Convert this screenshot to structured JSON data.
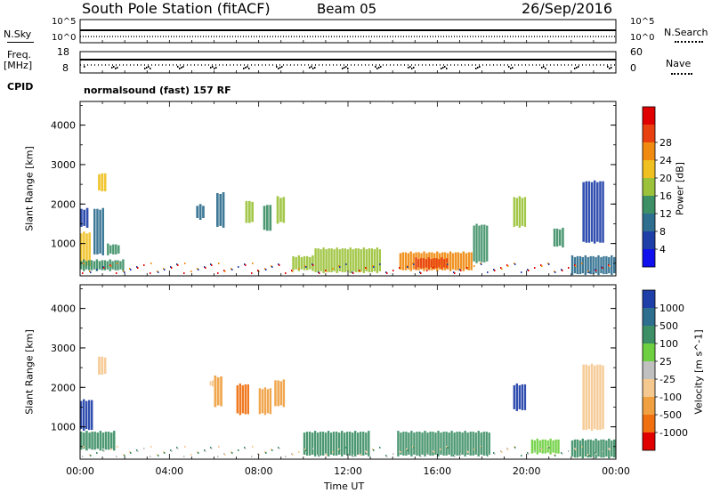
{
  "header": {
    "station": "South Pole Station (fitACF)",
    "beam": "Beam 05",
    "date": "26/Sep/2016"
  },
  "left_labels": {
    "nsky": "N.Sky",
    "freq_line1": "Freq.",
    "freq_line2": "[MHz]",
    "cpid": "CPID"
  },
  "right_labels": {
    "nsearch": "N.Search",
    "nave": "Nave"
  },
  "strip_ticks": {
    "noise_top": "10^5",
    "noise_bottom": "10^0",
    "nsearch_top": "10^5",
    "nsearch_bottom": "10^0",
    "freq_top": "18",
    "freq_bottom": "8",
    "nave_top": "60",
    "nave_bottom": "0"
  },
  "cpid_text": "normalsound (fast) 157 RF",
  "axes": {
    "ylabel": "Slant Range [km]",
    "xlabel": "Time UT",
    "yticks": [
      "1000",
      "2000",
      "3000",
      "4000"
    ],
    "xticks": [
      "00:00",
      "04:00",
      "08:00",
      "12:00",
      "16:00",
      "20:00",
      "00:00"
    ]
  },
  "power_scale": {
    "label": "Power [dB]",
    "ticks": [
      "4",
      "8",
      "12",
      "16",
      "20",
      "24",
      "28"
    ],
    "colors": [
      "#1010ee",
      "#1e3fa8",
      "#2e6e8e",
      "#3d8f66",
      "#9bc23a",
      "#f0c020",
      "#f08a10",
      "#e84010",
      "#e00000"
    ]
  },
  "velocity_scale": {
    "label": "Velocity [m s^-1]",
    "ticks": [
      "1000",
      "500",
      "100",
      "25",
      "-25",
      "-100",
      "-500",
      "-1000"
    ],
    "colors": [
      "#1e3fa8",
      "#2e6e8e",
      "#3d8f66",
      "#6ed040",
      "#c0c0c0",
      "#f5c890",
      "#f0a040",
      "#f07010",
      "#e00000"
    ]
  },
  "chart_data": [
    {
      "type": "heatmap",
      "title": "Power",
      "xlabel": "Time UT",
      "ylabel": "Slant Range [km]",
      "xlim": [
        "00:00",
        "24:00"
      ],
      "ylim": [
        180,
        4600
      ],
      "colorbar": {
        "label": "Power [dB]",
        "range": [
          0,
          32
        ]
      },
      "regions": [
        {
          "t0": 0.0,
          "t1": 0.5,
          "r0": 400,
          "r1": 1300,
          "value": 20
        },
        {
          "t0": 0.0,
          "t1": 0.4,
          "r0": 1400,
          "r1": 1900,
          "value": 6
        },
        {
          "t0": 0.6,
          "t1": 1.1,
          "r0": 700,
          "r1": 1900,
          "value": 8
        },
        {
          "t0": 0.8,
          "t1": 1.2,
          "r0": 2300,
          "r1": 2800,
          "value": 22
        },
        {
          "t0": 1.2,
          "t1": 1.8,
          "r0": 700,
          "r1": 1000,
          "value": 12
        },
        {
          "t0": 5.2,
          "t1": 5.6,
          "r0": 1600,
          "r1": 2000,
          "value": 8
        },
        {
          "t0": 6.1,
          "t1": 6.5,
          "r0": 1400,
          "r1": 2300,
          "value": 8
        },
        {
          "t0": 7.4,
          "t1": 7.8,
          "r0": 1500,
          "r1": 2100,
          "value": 18
        },
        {
          "t0": 8.2,
          "t1": 8.6,
          "r0": 1300,
          "r1": 2000,
          "value": 14
        },
        {
          "t0": 8.8,
          "t1": 9.2,
          "r0": 1500,
          "r1": 2200,
          "value": 18
        },
        {
          "t0": 0.0,
          "t1": 2.0,
          "r0": 300,
          "r1": 600,
          "value": 12
        },
        {
          "t0": 9.5,
          "t1": 10.5,
          "r0": 300,
          "r1": 700,
          "value": 16
        },
        {
          "t0": 10.5,
          "t1": 13.5,
          "r0": 250,
          "r1": 900,
          "value": 16
        },
        {
          "t0": 14.3,
          "t1": 17.6,
          "r0": 300,
          "r1": 800,
          "value": 24
        },
        {
          "t0": 15.0,
          "t1": 16.5,
          "r0": 350,
          "r1": 650,
          "value": 28
        },
        {
          "t0": 17.6,
          "t1": 18.3,
          "r0": 500,
          "r1": 1500,
          "value": 12
        },
        {
          "t0": 19.4,
          "t1": 20.0,
          "r0": 1400,
          "r1": 2200,
          "value": 16
        },
        {
          "t0": 21.2,
          "t1": 21.7,
          "r0": 900,
          "r1": 1400,
          "value": 12
        },
        {
          "t0": 22.5,
          "t1": 23.5,
          "r0": 1000,
          "r1": 2600,
          "value": 6
        },
        {
          "t0": 22.0,
          "t1": 24.0,
          "r0": 200,
          "r1": 700,
          "value": 10
        }
      ]
    },
    {
      "type": "heatmap",
      "title": "Velocity",
      "xlabel": "Time UT",
      "ylabel": "Slant Range [km]",
      "xlim": [
        "00:00",
        "24:00"
      ],
      "ylim": [
        180,
        4600
      ],
      "colorbar": {
        "label": "Velocity [m s^-1]",
        "range": [
          -1000,
          1000
        ]
      },
      "regions": [
        {
          "t0": 0.0,
          "t1": 0.6,
          "r0": 900,
          "r1": 1700,
          "value": 1000
        },
        {
          "t0": 0.0,
          "t1": 1.6,
          "r0": 400,
          "r1": 900,
          "value": 100
        },
        {
          "t0": 0.8,
          "t1": 1.2,
          "r0": 2300,
          "r1": 2800,
          "value": -100
        },
        {
          "t0": 5.8,
          "t1": 6.0,
          "r0": 2000,
          "r1": 2200,
          "value": -100
        },
        {
          "t0": 6.0,
          "t1": 6.4,
          "r0": 1500,
          "r1": 2300,
          "value": -500
        },
        {
          "t0": 7.0,
          "t1": 7.6,
          "r0": 1300,
          "r1": 2100,
          "value": -1000
        },
        {
          "t0": 8.0,
          "t1": 8.6,
          "r0": 1300,
          "r1": 2000,
          "value": -500
        },
        {
          "t0": 8.7,
          "t1": 9.2,
          "r0": 1500,
          "r1": 2200,
          "value": -500
        },
        {
          "t0": 10.0,
          "t1": 13.0,
          "r0": 250,
          "r1": 900,
          "value": 100
        },
        {
          "t0": 14.2,
          "t1": 18.4,
          "r0": 250,
          "r1": 900,
          "value": 100
        },
        {
          "t0": 19.4,
          "t1": 20.0,
          "r0": 1400,
          "r1": 2100,
          "value": 1000
        },
        {
          "t0": 20.2,
          "t1": 21.5,
          "r0": 300,
          "r1": 700,
          "value": 25
        },
        {
          "t0": 22.5,
          "t1": 23.5,
          "r0": 900,
          "r1": 2600,
          "value": -100
        },
        {
          "t0": 22.0,
          "t1": 24.0,
          "r0": 200,
          "r1": 700,
          "value": 100
        }
      ]
    }
  ]
}
